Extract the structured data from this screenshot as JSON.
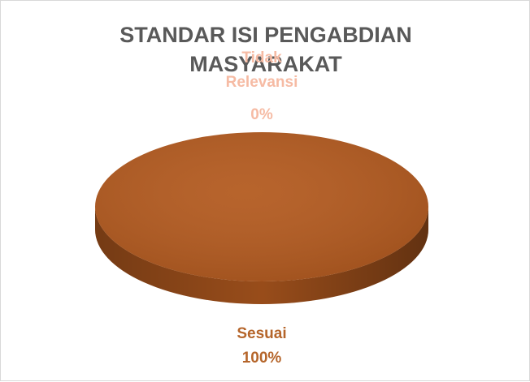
{
  "chart_data": {
    "type": "pie",
    "title": "STANDAR ISI PENGABDIAN MASYARAKAT",
    "categories": [
      "Sesuai",
      "Tidak Relevansi"
    ],
    "values": [
      100,
      0
    ],
    "value_labels": [
      "100%",
      "0%"
    ],
    "colors": [
      "#b35a1f",
      "#f4b183"
    ],
    "label_colors": [
      "#b5652a",
      "#f6bba4"
    ],
    "three_d": true
  }
}
